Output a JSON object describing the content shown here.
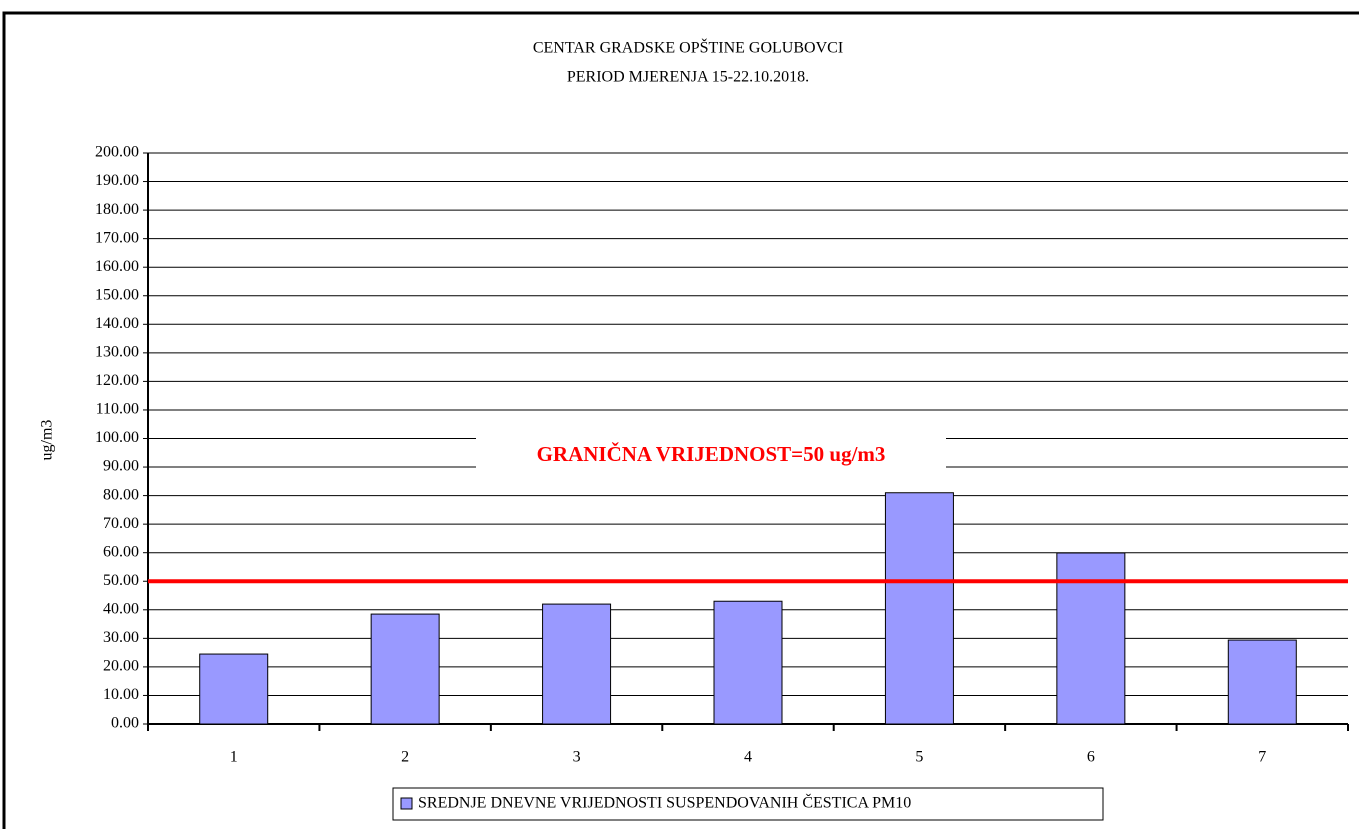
{
  "chart_data": {
    "type": "bar",
    "title": [
      "CENTAR GRADSKE OPŠTINE GOLUBOVCI",
      "PERIOD MJERENJA 15-22.10.2018."
    ],
    "y_label": "ug/m3",
    "categories": [
      "1",
      "2",
      "3",
      "4",
      "5",
      "6",
      "7"
    ],
    "series": [
      {
        "name": "SREDNJE DNEVNE VRIJEDNOSTI SUSPENDOVANIH ČESTICA PM10",
        "color": "#9999ff",
        "values": [
          24.5,
          38.5,
          42,
          43,
          81,
          59.9,
          29.4
        ]
      }
    ],
    "threshold": {
      "value": 50,
      "label": "GRANIČNA VRIJEDNOST=50 ug/m3",
      "color": "#ff0000"
    },
    "ylim": [
      0,
      200
    ],
    "yticks": [
      {
        "value": 0,
        "label": "0.00"
      },
      {
        "value": 10,
        "label": "10.00"
      },
      {
        "value": 20,
        "label": "20.00"
      },
      {
        "value": 30,
        "label": "30.00"
      },
      {
        "value": 40,
        "label": "40.00"
      },
      {
        "value": 50,
        "label": "50.00"
      },
      {
        "value": 60,
        "label": "60.00"
      },
      {
        "value": 70,
        "label": "70.00"
      },
      {
        "value": 80,
        "label": "80.00"
      },
      {
        "value": 90,
        "label": "90.00"
      },
      {
        "value": 100,
        "label": "100.00"
      },
      {
        "value": 110,
        "label": "110.00"
      },
      {
        "value": 120,
        "label": "120.00"
      },
      {
        "value": 130,
        "label": "130.00"
      },
      {
        "value": 140,
        "label": "140.00"
      },
      {
        "value": 150,
        "label": "150.00"
      },
      {
        "value": 160,
        "label": "160.00"
      },
      {
        "value": 170,
        "label": "170.00"
      },
      {
        "value": 180,
        "label": "180.00"
      },
      {
        "value": 190,
        "label": "190.00"
      },
      {
        "value": 200,
        "label": "200.00"
      }
    ],
    "grid": true,
    "legend": "bottom"
  }
}
